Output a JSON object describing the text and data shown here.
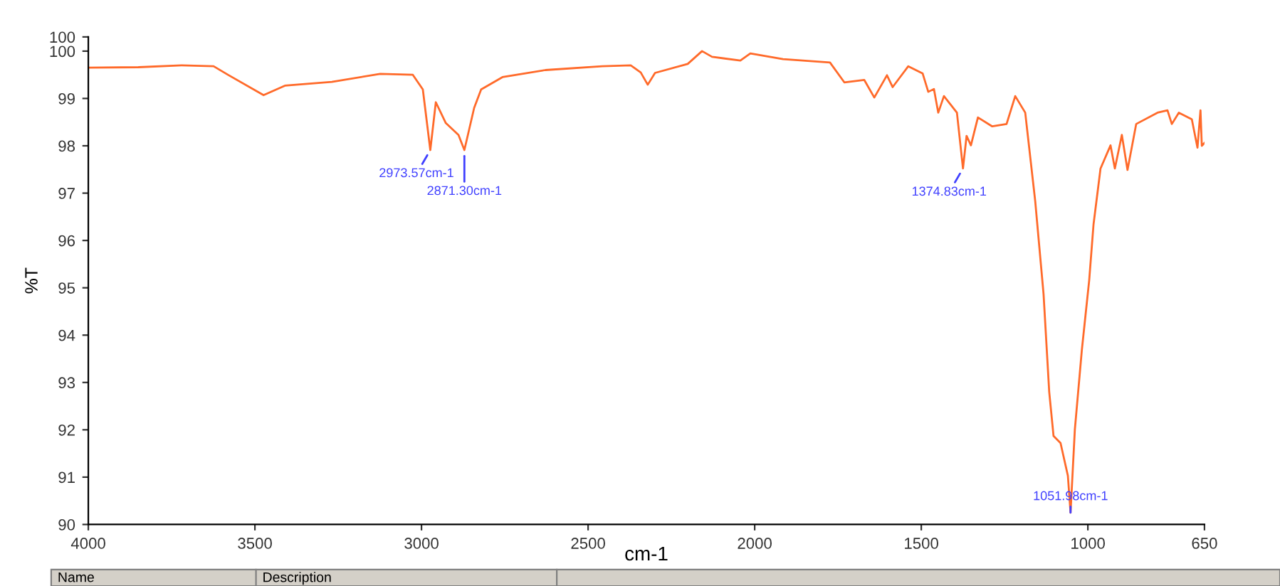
{
  "chart_data": {
    "type": "line",
    "xlabel": "cm-1",
    "ylabel": "%T",
    "xlim": [
      4000,
      650
    ],
    "xticks": [
      4000,
      3500,
      3000,
      2500,
      2000,
      1500,
      1000,
      650
    ],
    "ylim": [
      90,
      100.3
    ],
    "yticks": [
      90,
      91,
      92,
      93,
      94,
      95,
      96,
      97,
      98,
      99,
      100,
      {
        "value": 100.3,
        "label": "100"
      }
    ],
    "grid": false,
    "legend": false,
    "marker": "none",
    "line_style": "solid",
    "x": [
      4000,
      3850,
      3720,
      3624,
      3581,
      3474,
      3410,
      3269,
      3124,
      3026,
      2996,
      2973.57,
      2957,
      2927,
      2889,
      2871.3,
      2842,
      2821,
      2757,
      2628,
      2457,
      2372,
      2342,
      2321,
      2299,
      2201,
      2158,
      2128,
      2043,
      2013,
      1915,
      1774,
      1731,
      1671,
      1641,
      1603,
      1586,
      1539,
      1496,
      1479,
      1462,
      1449,
      1432,
      1393,
      1374.83,
      1364,
      1351,
      1330,
      1287,
      1244,
      1218,
      1188,
      1158,
      1133,
      1116,
      1103,
      1082,
      1060,
      1051.98,
      1039,
      1018,
      996,
      983,
      962,
      932,
      919,
      898,
      881,
      855,
      791,
      761,
      748,
      727,
      688,
      671,
      662,
      658,
      650
    ],
    "series": [
      {
        "color": "#ff6a2a",
        "values": [
          99.65,
          99.66,
          99.7,
          99.68,
          99.5,
          99.07,
          99.27,
          99.35,
          99.52,
          99.5,
          99.19,
          97.91,
          98.92,
          98.48,
          98.23,
          97.91,
          98.8,
          99.19,
          99.45,
          99.6,
          99.68,
          99.7,
          99.55,
          99.29,
          99.54,
          99.73,
          100.0,
          99.88,
          99.8,
          99.95,
          99.83,
          99.76,
          99.34,
          99.39,
          99.02,
          99.49,
          99.24,
          99.68,
          99.53,
          99.14,
          99.2,
          98.7,
          99.05,
          98.7,
          97.52,
          98.21,
          98.01,
          98.6,
          98.41,
          98.46,
          99.05,
          98.7,
          96.83,
          94.87,
          92.8,
          91.87,
          91.72,
          91.03,
          90.25,
          92.01,
          93.69,
          95.16,
          96.34,
          97.52,
          98.01,
          97.52,
          98.23,
          97.49,
          98.46,
          98.7,
          98.75,
          98.46,
          98.7,
          98.56,
          97.96,
          98.75,
          98.0,
          98.06
        ]
      }
    ],
    "annotations": [
      {
        "text": "2973.57cm-1",
        "x": 2973.57,
        "y": 97.91
      },
      {
        "text": "2871.30cm-1",
        "x": 2871.3,
        "y": 97.91
      },
      {
        "text": "1374.83cm-1",
        "x": 1374.83,
        "y": 97.52
      },
      {
        "text": "1051.98cm-1",
        "x": 1051.98,
        "y": 90.25
      },
      "Name",
      "Description"
    ]
  }
}
